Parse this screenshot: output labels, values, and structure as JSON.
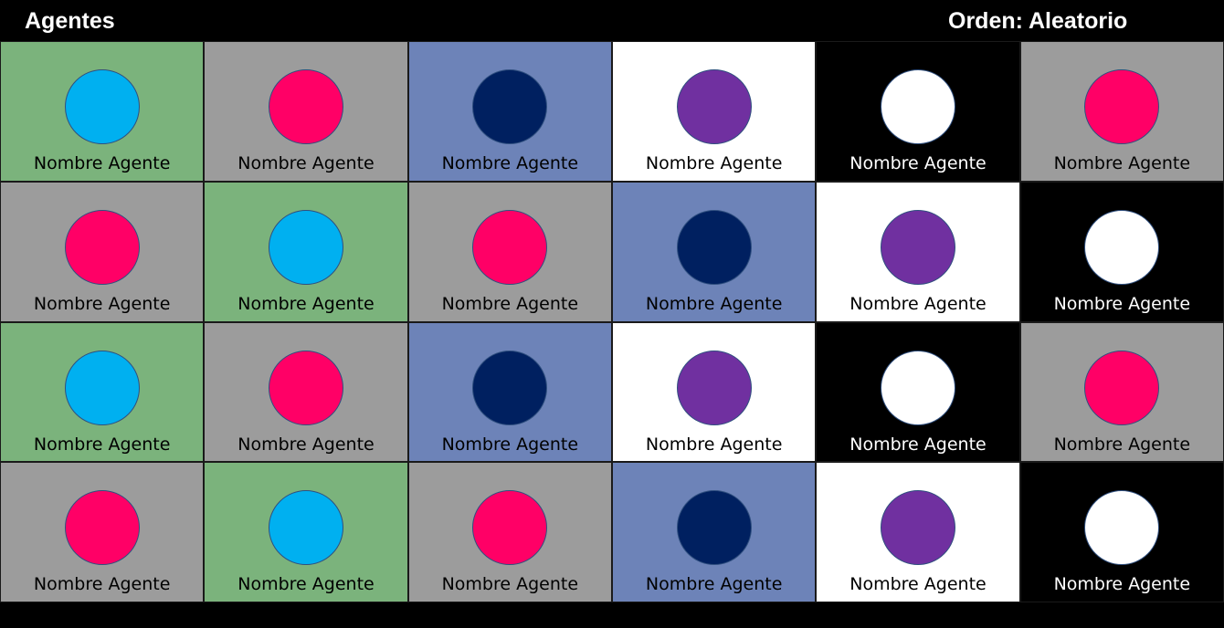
{
  "header": {
    "title": "Agentes",
    "order_label": "Orden: Aleatorio"
  },
  "theme": {
    "page_background": "#000000",
    "header_text_color": "#ffffff"
  },
  "tile_styles": {
    "green": {
      "background": "#7bb37c",
      "avatar": "#00b0f0",
      "text": "#000000",
      "avatar_icon": "blue-circle-icon"
    },
    "gray": {
      "background": "#9c9c9c",
      "avatar": "#ff0066",
      "text": "#000000",
      "avatar_icon": "pink-circle-icon"
    },
    "blue": {
      "background": "#6d83b8",
      "avatar": "#002060",
      "text": "#000000",
      "avatar_icon": "navy-circle-icon"
    },
    "white": {
      "background": "#ffffff",
      "avatar": "#7030a0",
      "text": "#000000",
      "avatar_icon": "purple-circle-icon"
    },
    "black": {
      "background": "#000000",
      "avatar": "#ffffff",
      "text": "#ffffff",
      "avatar_icon": "white-circle-icon"
    }
  },
  "agents": {
    "rows": [
      [
        {
          "name": "Nombre Agente",
          "style": "green"
        },
        {
          "name": "Nombre Agente",
          "style": "gray"
        },
        {
          "name": "Nombre Agente",
          "style": "blue"
        },
        {
          "name": "Nombre Agente",
          "style": "white"
        },
        {
          "name": "Nombre Agente",
          "style": "black"
        },
        {
          "name": "Nombre Agente",
          "style": "gray"
        }
      ],
      [
        {
          "name": "Nombre Agente",
          "style": "gray"
        },
        {
          "name": "Nombre Agente",
          "style": "green"
        },
        {
          "name": "Nombre Agente",
          "style": "gray"
        },
        {
          "name": "Nombre Agente",
          "style": "blue"
        },
        {
          "name": "Nombre Agente",
          "style": "white"
        },
        {
          "name": "Nombre Agente",
          "style": "black"
        }
      ],
      [
        {
          "name": "Nombre Agente",
          "style": "green"
        },
        {
          "name": "Nombre Agente",
          "style": "gray"
        },
        {
          "name": "Nombre Agente",
          "style": "blue"
        },
        {
          "name": "Nombre Agente",
          "style": "white"
        },
        {
          "name": "Nombre Agente",
          "style": "black"
        },
        {
          "name": "Nombre Agente",
          "style": "gray"
        }
      ],
      [
        {
          "name": "Nombre Agente",
          "style": "gray"
        },
        {
          "name": "Nombre Agente",
          "style": "green"
        },
        {
          "name": "Nombre Agente",
          "style": "gray"
        },
        {
          "name": "Nombre Agente",
          "style": "blue"
        },
        {
          "name": "Nombre Agente",
          "style": "white"
        },
        {
          "name": "Nombre Agente",
          "style": "black"
        }
      ]
    ]
  }
}
